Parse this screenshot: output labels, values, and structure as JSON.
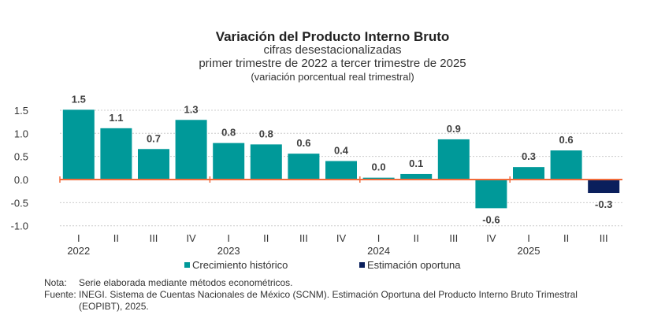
{
  "chart_data": {
    "type": "bar",
    "title": "Variación del Producto Interno Bruto",
    "subtitle": [
      "cifras desestacionalizadas",
      "primer trimestre de 2022 a tercer trimestre de 2025",
      "(variación porcentual real trimestral)"
    ],
    "categories": [
      "I",
      "II",
      "III",
      "IV",
      "I",
      "II",
      "III",
      "IV",
      "I",
      "II",
      "III",
      "IV",
      "I",
      "II",
      "III"
    ],
    "years": [
      {
        "label": "2022",
        "start": 0
      },
      {
        "label": "2023",
        "start": 4
      },
      {
        "label": "2024",
        "start": 8
      },
      {
        "label": "2025",
        "start": 12
      }
    ],
    "values": [
      1.51,
      1.11,
      0.66,
      1.29,
      0.79,
      0.76,
      0.56,
      0.4,
      0.04,
      0.12,
      0.87,
      -0.62,
      0.27,
      0.63,
      -0.29
    ],
    "labels": [
      "1.5",
      "1.1",
      "0.7",
      "1.3",
      "0.8",
      "0.8",
      "0.6",
      "0.4",
      "0.0",
      "0.1",
      "0.9",
      "-0.6",
      "0.3",
      "0.6",
      "-0.3"
    ],
    "series_index": [
      0,
      0,
      0,
      0,
      0,
      0,
      0,
      0,
      0,
      0,
      0,
      0,
      0,
      0,
      1
    ],
    "series": [
      {
        "name": "Crecimiento  histórico",
        "color": "#009999"
      },
      {
        "name": "Estimación oportuna",
        "color": "#0a1f5c"
      }
    ],
    "yticks": [
      "1.5",
      "1.0",
      "0.5",
      "0.0",
      "-0.5",
      "-1.0"
    ],
    "ylim": [
      -1.0,
      1.5
    ],
    "grid": true,
    "zero_line_color": "#f26b3a",
    "legend": "bottom"
  },
  "notes": {
    "nota_label": "Nota:",
    "nota_text": "Serie elaborada mediante métodos econométricos.",
    "fuente_label": "Fuente:",
    "fuente_text_1": "INEGI. Sistema de Cuentas Nacionales de México (SCNM). Estimación Oportuna del Producto Interno Bruto Trimestral",
    "fuente_text_2": "(EOPIBT), 2025."
  }
}
